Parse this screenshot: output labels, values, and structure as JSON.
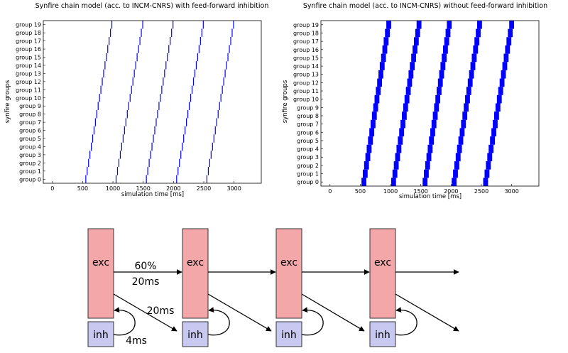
{
  "chart_data": [
    {
      "type": "scatter",
      "title": "Synfire chain model (acc. to INCM-CNRS) with feed-forward inhibition",
      "xlabel": "simulation time [ms]",
      "ylabel": "synfire groups",
      "xlim": [
        -150,
        3450
      ],
      "x_ticks": [
        0,
        500,
        1000,
        1500,
        2000,
        2500,
        3000
      ],
      "categories": [
        "group 0",
        "group 1",
        "group 2",
        "group 3",
        "group 4",
        "group 5",
        "group 6",
        "group 7",
        "group 8",
        "group 9",
        "group 10",
        "group 11",
        "group 12",
        "group 13",
        "group 14",
        "group 15",
        "group 16",
        "group 17",
        "group 18",
        "group 19"
      ],
      "series": [
        {
          "color": "#0000ff",
          "spread": 3,
          "waves": [
            {
              "start": 545,
              "end": 975
            },
            {
              "start": 1045,
              "end": 1485
            },
            {
              "start": 1545,
              "end": 1985
            },
            {
              "start": 2045,
              "end": 2485
            },
            {
              "start": 2545,
              "end": 2985
            }
          ]
        }
      ],
      "grid": false
    },
    {
      "type": "scatter",
      "title": "Synfire chain model (acc. to INCM-CNRS) without feed-forward inhibition",
      "xlabel": "simulation time [ms]",
      "ylabel": "synfire groups",
      "xlim": [
        -150,
        3450
      ],
      "x_ticks": [
        0,
        500,
        1000,
        1500,
        2000,
        2500,
        3000
      ],
      "categories": [
        "group 0",
        "group 1",
        "group 2",
        "group 3",
        "group 4",
        "group 5",
        "group 6",
        "group 7",
        "group 8",
        "group 9",
        "group 10",
        "group 11",
        "group 12",
        "group 13",
        "group 14",
        "group 15",
        "group 16",
        "group 17",
        "group 18",
        "group 19"
      ],
      "series": [
        {
          "color": "#0000ff",
          "spread": 80,
          "waves": [
            {
              "start": 520,
              "end": 930
            },
            {
              "start": 1010,
              "end": 1430
            },
            {
              "start": 1530,
              "end": 1930
            },
            {
              "start": 2010,
              "end": 2430
            },
            {
              "start": 2530,
              "end": 2960
            }
          ]
        }
      ],
      "grid": false
    }
  ],
  "diagram": {
    "exc_label": "exc",
    "inh_label": "inh",
    "weight_label": "60%",
    "delay_exc_label": "20ms",
    "delay_inh_label": "20ms",
    "recurrent_label": "4ms",
    "exc_color": "#f4a7a9",
    "inh_color": "#c8c8f0",
    "stages": 4
  }
}
